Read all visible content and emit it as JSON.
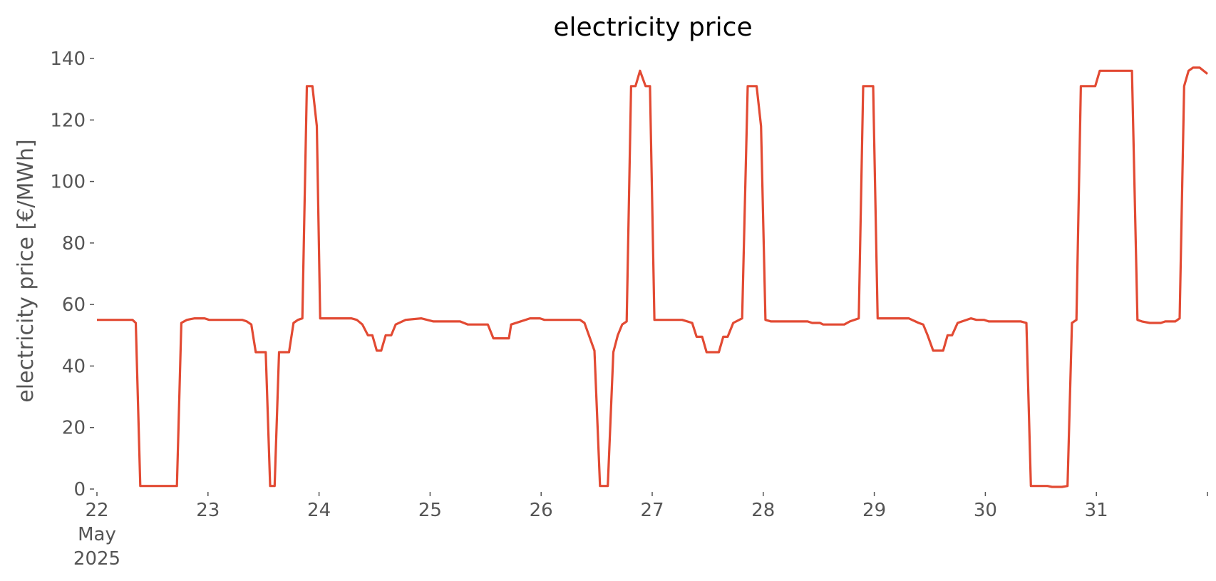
{
  "chart_data": {
    "type": "line",
    "title": "electricity price",
    "ylabel": "electricity price [€/MWh]",
    "color": "#e24a33",
    "x": [
      22.0,
      22.32,
      22.35,
      22.39,
      22.72,
      22.76,
      22.81,
      22.88,
      22.97,
      23.01,
      23.31,
      23.35,
      23.39,
      23.43,
      23.52,
      23.56,
      23.6,
      23.64,
      23.73,
      23.77,
      23.81,
      23.85,
      23.89,
      23.94,
      23.98,
      24.01,
      24.29,
      24.34,
      24.39,
      24.44,
      24.48,
      24.52,
      24.56,
      24.6,
      24.65,
      24.69,
      24.78,
      24.92,
      25.03,
      25.27,
      25.34,
      25.52,
      25.57,
      25.71,
      25.73,
      25.9,
      25.99,
      26.03,
      26.35,
      26.39,
      26.48,
      26.53,
      26.6,
      26.65,
      26.69,
      26.73,
      26.77,
      26.81,
      26.85,
      26.89,
      26.94,
      26.98,
      27.02,
      27.27,
      27.36,
      27.4,
      27.45,
      27.49,
      27.6,
      27.64,
      27.68,
      27.73,
      27.81,
      27.86,
      27.94,
      27.98,
      28.02,
      28.07,
      28.4,
      28.44,
      28.51,
      28.54,
      28.73,
      28.78,
      28.86,
      28.9,
      28.99,
      29.03,
      29.31,
      29.4,
      29.44,
      29.48,
      29.53,
      29.62,
      29.66,
      29.7,
      29.75,
      29.87,
      29.92,
      29.99,
      30.03,
      30.32,
      30.37,
      30.41,
      30.56,
      30.6,
      30.69,
      30.74,
      30.78,
      30.82,
      30.86,
      30.99,
      31.03,
      31.32,
      31.37,
      31.41,
      31.48,
      31.58,
      31.62,
      31.71,
      31.75,
      31.79,
      31.83,
      31.87,
      31.93,
      32.0
    ],
    "values": [
      55,
      55,
      54,
      1,
      1,
      54,
      55,
      55.5,
      55.5,
      55,
      55,
      54.5,
      53.5,
      44.5,
      44.5,
      1,
      1,
      44.5,
      44.5,
      54,
      55,
      55.5,
      131,
      131,
      118,
      55.5,
      55.5,
      55,
      53.5,
      50,
      50,
      45,
      45,
      50,
      50,
      53.5,
      55,
      55.5,
      54.5,
      54.5,
      53.5,
      53.5,
      49,
      49,
      53.5,
      55.5,
      55.5,
      55,
      55,
      54,
      45,
      1,
      1,
      44.5,
      50,
      53.5,
      54.5,
      131,
      131,
      136,
      131,
      131,
      55,
      55,
      54,
      49.5,
      49.5,
      44.5,
      44.5,
      49.5,
      49.5,
      54,
      55.5,
      131,
      131,
      118,
      55,
      54.5,
      54.5,
      54,
      54,
      53.5,
      53.5,
      54.5,
      55.5,
      131,
      131,
      55.5,
      55.5,
      54,
      53.5,
      50,
      45,
      45,
      50,
      50,
      54,
      55.5,
      55,
      55,
      54.5,
      54.5,
      54,
      1,
      1,
      0.7,
      0.7,
      1,
      54,
      55,
      131,
      131,
      136,
      136,
      55,
      54.5,
      54,
      54,
      54.5,
      54.5,
      55.5,
      131,
      136,
      137,
      137,
      135
    ],
    "xlim": [
      22,
      32
    ],
    "xticks": [
      {
        "value": 22,
        "label": "22\nMay\n2025"
      },
      23,
      24,
      25,
      26,
      27,
      28,
      29,
      30,
      31,
      {
        "value": 32,
        "label": null
      }
    ],
    "ylim": [
      0,
      140
    ],
    "yticks": [
      0,
      20,
      40,
      60,
      80,
      100,
      120,
      140
    ]
  }
}
